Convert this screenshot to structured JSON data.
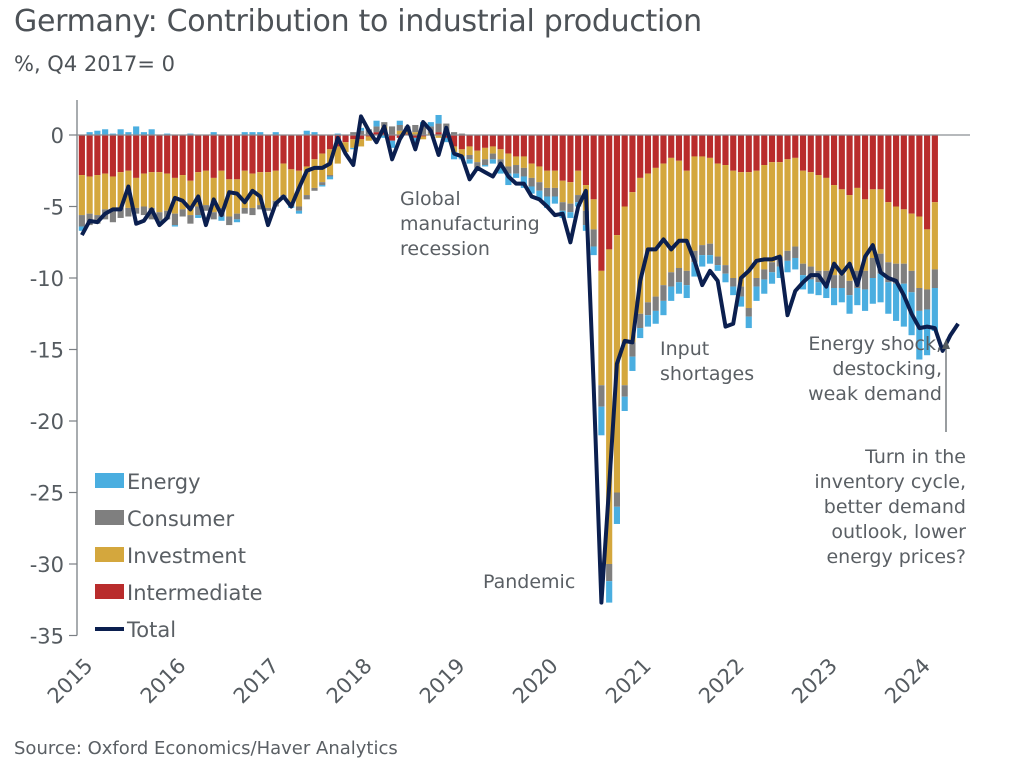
{
  "chart_data": {
    "type": "bar",
    "stacked": true,
    "title": "Germany: Contribution to industrial production",
    "subtitle": "%, Q4 2017= 0",
    "source": "Source: Oxford Economics/Haver Analytics",
    "ylim": [
      -35,
      2
    ],
    "yticks": [
      0,
      -5,
      -10,
      -15,
      -20,
      -25,
      -30,
      -35
    ],
    "xtick_labels": [
      "2015",
      "2016",
      "2017",
      "2018",
      "2019",
      "2020",
      "2021",
      "2022",
      "2023",
      "2024"
    ],
    "start": "2015-01",
    "frequency": "monthly",
    "legend_position": "bottom-left",
    "colors": {
      "Energy": "#4aaee0",
      "Consumer": "#7f7f7f",
      "Investment": "#d4a73d",
      "Intermediate": "#b92c2c",
      "Total": "#0b1f4f"
    },
    "series": [
      {
        "name": "Energy",
        "values": [
          -0.3,
          0.2,
          0.3,
          0.4,
          0.1,
          0.4,
          0.2,
          0.6,
          0.2,
          0.4,
          -0.2,
          0.1,
          -0.1,
          0.0,
          0.1,
          -0.2,
          0.0,
          0.2,
          -0.3,
          0.0,
          -0.2,
          0.2,
          0.2,
          0.2,
          0.0,
          0.2,
          0.0,
          -0.1,
          -0.2,
          0.3,
          0.2,
          -0.1,
          -0.2,
          0.1,
          0.0,
          -0.1,
          0.2,
          0.0,
          0.4,
          -0.2,
          -0.5,
          0.3,
          0.0,
          -0.3,
          0.3,
          0.3,
          0.6,
          -0.3,
          -0.5,
          -0.2,
          -0.3,
          -0.1,
          -0.1,
          -0.3,
          -0.5,
          -0.8,
          -0.3,
          -0.8,
          -0.5,
          -0.6,
          -0.8,
          -0.5,
          -0.5,
          -0.4,
          -0.3,
          -0.4,
          -0.6,
          -2.0,
          -1.5,
          -1.2,
          -1.0,
          -1.0,
          -0.7,
          -0.8,
          -0.9,
          -1.0,
          -1.0,
          -0.8,
          -0.9,
          -1.0,
          -0.8,
          -0.6,
          -0.4,
          -0.6,
          -0.6,
          -0.7,
          -0.8,
          -1.0,
          -1.0,
          -0.8,
          -0.8,
          -0.8,
          -0.8,
          -1.0,
          -1.0,
          -0.9,
          -1.1,
          -1.2,
          -1.0,
          -1.3,
          -1.2,
          -1.5,
          -1.8,
          -2.0,
          -2.2,
          -2.6,
          -3.0,
          -3.0,
          -3.4,
          -3.2,
          -3.0
        ],
        "total_ref": true
      },
      {
        "name": "Consumer",
        "values": [
          -0.8,
          -0.8,
          -0.6,
          -0.7,
          -0.8,
          -0.7,
          -0.6,
          -0.4,
          -0.6,
          -0.8,
          -0.6,
          -0.6,
          -0.8,
          -0.5,
          -0.6,
          -0.6,
          -0.4,
          -0.5,
          -0.6,
          -0.6,
          -0.4,
          -0.4,
          -0.5,
          -0.3,
          -0.2,
          -0.4,
          -0.3,
          -0.3,
          -0.3,
          -0.3,
          -0.2,
          -0.2,
          -0.1,
          0.0,
          0.0,
          0.2,
          0.3,
          0.4,
          0.4,
          0.3,
          0.6,
          0.4,
          0.3,
          0.5,
          0.6,
          0.5,
          0.6,
          0.6,
          0.2,
          0.1,
          -0.3,
          -0.4,
          -0.4,
          -0.4,
          -0.5,
          -0.5,
          -0.6,
          -0.6,
          -0.6,
          -0.6,
          -0.6,
          -0.6,
          -0.6,
          -0.6,
          -0.5,
          -1.0,
          -1.2,
          -1.5,
          -1.2,
          -1.0,
          -0.8,
          -1.0,
          -1.0,
          -0.9,
          -1.0,
          -1.1,
          -1.0,
          -1.0,
          -1.0,
          -0.8,
          -0.7,
          -0.8,
          -0.6,
          -0.6,
          -0.6,
          -0.7,
          -0.6,
          -0.6,
          -0.7,
          -0.7,
          -0.7,
          -0.7,
          -0.8,
          -0.8,
          -0.9,
          -0.8,
          -0.8,
          -0.9,
          -0.9,
          -1.0,
          -1.2,
          -1.3,
          -1.4,
          -1.4,
          -1.4,
          -1.4,
          -1.4,
          -1.5,
          -1.6,
          -1.4,
          -1.3
        ]
      },
      {
        "name": "Investment",
        "values": [
          -2.8,
          -2.6,
          -2.8,
          -2.5,
          -2.4,
          -2.5,
          -2.6,
          -2.1,
          -2.3,
          -2.5,
          -2.8,
          -2.6,
          -2.5,
          -2.4,
          -2.4,
          -2.4,
          -2.4,
          -2.4,
          -2.6,
          -2.6,
          -2.4,
          -2.6,
          -2.4,
          -2.3,
          -2.5,
          -2.1,
          -2.2,
          -2.3,
          -2.5,
          -2.0,
          -2.0,
          -2.0,
          -1.8,
          -1.2,
          -0.7,
          -0.6,
          -0.5,
          -0.3,
          0.0,
          0.3,
          0.0,
          0.3,
          0.2,
          0.2,
          -0.2,
          0.1,
          -0.2,
          0.2,
          -0.4,
          -0.5,
          -0.6,
          -0.8,
          -0.8,
          -0.5,
          -0.7,
          -0.9,
          -0.6,
          -0.8,
          -1.0,
          -1.1,
          -1.2,
          -1.2,
          -1.5,
          -1.5,
          -1.7,
          -1.8,
          -2.1,
          -8.0,
          -22.0,
          -18.0,
          -12.5,
          -10.5,
          -9.5,
          -9.0,
          -9.0,
          -8.5,
          -8.0,
          -7.5,
          -7.0,
          -6.6,
          -6.2,
          -6.0,
          -6.5,
          -7.0,
          -7.5,
          -8.0,
          -9.5,
          -7.5,
          -7.3,
          -7.0,
          -6.6,
          -6.4,
          -6.2,
          -6.5,
          -6.6,
          -6.7,
          -6.5,
          -6.3,
          -6.0,
          -6.0,
          -5.8,
          -5.0,
          -4.8,
          -4.5,
          -4.2,
          -4.0,
          -3.8,
          -4.0,
          -5.0,
          -4.2,
          -4.7
        ]
      },
      {
        "name": "Intermediate",
        "values": [
          -2.8,
          -2.9,
          -2.8,
          -2.7,
          -2.9,
          -2.6,
          -2.5,
          -3.0,
          -2.7,
          -2.6,
          -2.6,
          -2.7,
          -3.0,
          -2.8,
          -3.2,
          -2.6,
          -2.5,
          -3.0,
          -2.5,
          -3.1,
          -3.1,
          -2.5,
          -2.7,
          -2.6,
          -2.6,
          -2.5,
          -2.0,
          -2.4,
          -2.5,
          -2.2,
          -1.7,
          -1.3,
          -1.0,
          -0.8,
          -0.5,
          -0.3,
          -0.3,
          -0.1,
          0.2,
          0.3,
          -0.4,
          -0.2,
          0.1,
          -0.2,
          -0.1,
          0.0,
          0.2,
          -0.2,
          -0.8,
          -1.0,
          -0.8,
          -1.1,
          -0.9,
          -0.8,
          -1.0,
          -1.3,
          -1.5,
          -1.5,
          -2.0,
          -2.2,
          -2.5,
          -2.5,
          -3.2,
          -3.3,
          -2.5,
          -3.5,
          -4.5,
          -9.5,
          -8.0,
          -7.0,
          -5.0,
          -4.0,
          -3.0,
          -2.7,
          -2.3,
          -2.0,
          -1.6,
          -1.8,
          -2.5,
          -1.5,
          -1.5,
          -1.6,
          -2.0,
          -2.1,
          -2.5,
          -2.6,
          -2.6,
          -2.5,
          -2.1,
          -1.9,
          -1.9,
          -1.7,
          -1.6,
          -2.5,
          -2.6,
          -2.8,
          -3.0,
          -3.5,
          -3.8,
          -4.2,
          -3.7,
          -4.5,
          -3.8,
          -3.8,
          -4.7,
          -5.0,
          -5.2,
          -5.5,
          -5.7,
          -6.6,
          -4.7
        ]
      },
      {
        "name": "Total",
        "type": "line",
        "values": [
          -7.0,
          -6.0,
          -6.1,
          -5.5,
          -5.2,
          -5.2,
          -3.6,
          -6.2,
          -6.0,
          -5.2,
          -6.3,
          -5.8,
          -4.4,
          -4.6,
          -5.2,
          -4.3,
          -6.3,
          -4.5,
          -5.6,
          -4.0,
          -4.1,
          -4.7,
          -3.9,
          -4.3,
          -6.3,
          -4.8,
          -4.3,
          -5.0,
          -3.7,
          -2.5,
          -2.3,
          -2.3,
          -2.0,
          -0.2,
          -1.3,
          -2.1,
          1.3,
          0.3,
          -0.5,
          0.6,
          -1.7,
          -0.3,
          0.6,
          -1.0,
          0.9,
          0.3,
          -1.4,
          0.5,
          -1.3,
          -1.5,
          -3.1,
          -2.3,
          -2.6,
          -2.9,
          -2.0,
          -2.9,
          -3.4,
          -3.4,
          -4.3,
          -4.5,
          -5.0,
          -5.6,
          -5.5,
          -7.5,
          -5.0,
          -3.9,
          -17.6,
          -32.7,
          -24.5,
          -16.0,
          -14.4,
          -14.5,
          -10.2,
          -8.0,
          -8.0,
          -7.3,
          -8.0,
          -7.4,
          -7.4,
          -8.8,
          -10.5,
          -9.5,
          -10.2,
          -13.4,
          -13.2,
          -10.0,
          -9.5,
          -8.8,
          -8.7,
          -8.7,
          -8.5,
          -12.6,
          -10.9,
          -10.3,
          -9.8,
          -9.8,
          -10.6,
          -9.0,
          -9.7,
          -9.0,
          -10.5,
          -8.5,
          -7.7,
          -9.6,
          -10.0,
          -10.2,
          -11.2,
          -12.5,
          -13.5,
          -13.4,
          -13.5,
          -15.1,
          -14.0,
          -13.2
        ]
      }
    ],
    "annotations": [
      {
        "text": [
          "Global",
          "manufacturing",
          "recession"
        ],
        "near": "2019"
      },
      {
        "text": [
          "Pandemic"
        ],
        "near": "2020-04"
      },
      {
        "text": [
          "Input",
          "shortages"
        ],
        "near": "2021-09"
      },
      {
        "text": [
          "Energy shock,",
          "destocking,",
          "weak demand"
        ],
        "near": "2023-09",
        "align": "right"
      },
      {
        "text": [
          "Turn in the",
          "inventory cycle,",
          "better demand",
          "outlook, lower",
          "energy prices?"
        ],
        "near": "2024-01",
        "align": "right",
        "arrow": true
      }
    ],
    "legend": [
      "Energy",
      "Consumer",
      "Investment",
      "Intermediate",
      "Total"
    ]
  }
}
